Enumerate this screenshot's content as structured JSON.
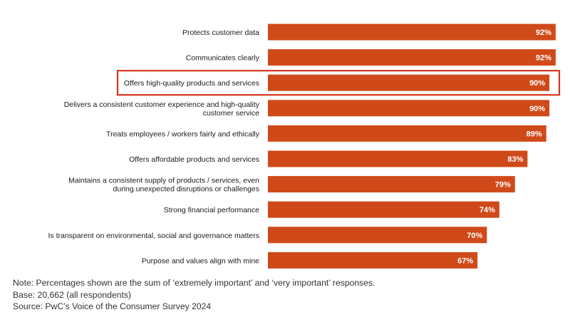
{
  "colors": {
    "bar": "#d04a19",
    "highlight": "#d6351c",
    "text": "#1a1a1a"
  },
  "chart_data": {
    "type": "bar",
    "orientation": "horizontal",
    "title": "",
    "xlabel": "",
    "ylabel": "",
    "xlim": [
      0,
      100
    ],
    "grid": false,
    "categories": [
      [
        "Protects customer data"
      ],
      [
        "Communicates clearly"
      ],
      [
        "Offers high-quality products and services"
      ],
      [
        "Delivers a consistent customer experience and high-quality",
        "customer service"
      ],
      [
        "Treats employees / workers fairly and ethically"
      ],
      [
        "Offers affordable products and services"
      ],
      [
        "Maintains a consistent supply of products / services, even",
        "during unexpected disruptions or challenges"
      ],
      [
        "Strong financial performance"
      ],
      [
        "Is transparent on environmental, social and governance matters"
      ],
      [
        "Purpose and values align with mine"
      ]
    ],
    "values": [
      92,
      92,
      90,
      90,
      89,
      83,
      79,
      74,
      70,
      67
    ],
    "value_labels": [
      "92%",
      "92%",
      "90%",
      "90%",
      "89%",
      "83%",
      "79%",
      "74%",
      "70%",
      "67%"
    ],
    "highlighted_index": 2
  },
  "notes": {
    "note": "Note: Percentages shown are the sum of ‘extremely important’ and ‘very important’ responses.",
    "base": "Base: 20,662 (all respondents)",
    "source": "Source: PwC’s Voice of the Consumer Survey 2024"
  }
}
